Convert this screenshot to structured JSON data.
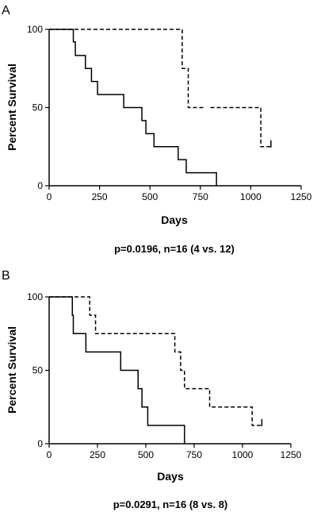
{
  "chart_data": [
    {
      "panel": "A",
      "type": "line",
      "subtype": "kaplan-meier step",
      "xlabel": "Days",
      "ylabel": "Percent Survival",
      "caption": "p=0.0196, n=16 (4 vs. 12)",
      "xlim": [
        0,
        1250
      ],
      "ylim": [
        0,
        100
      ],
      "xticks": [
        0,
        250,
        500,
        750,
        1000,
        1250
      ],
      "yticks": [
        0,
        50,
        100
      ],
      "grid": false,
      "legend": "none",
      "series": [
        {
          "style": "dashed",
          "color": "#000000",
          "points": [
            [
              0,
              100
            ],
            [
              660,
              100
            ],
            [
              660,
              75
            ],
            [
              690,
              75
            ],
            [
              690,
              50
            ],
            [
              770,
              50
            ],
            [
              800,
              50
            ],
            [
              1050,
              50
            ],
            [
              1050,
              25
            ],
            [
              1100,
              25
            ]
          ],
          "gap_between_x": [
            770,
            800
          ],
          "censor_end_tick": true
        },
        {
          "style": "solid",
          "color": "#000000",
          "points": [
            [
              0,
              100
            ],
            [
              120,
              100
            ],
            [
              120,
              92
            ],
            [
              130,
              92
            ],
            [
              130,
              83.3
            ],
            [
              180,
              83.3
            ],
            [
              180,
              75
            ],
            [
              210,
              75
            ],
            [
              210,
              66.7
            ],
            [
              240,
              66.7
            ],
            [
              240,
              58.3
            ],
            [
              370,
              58.3
            ],
            [
              370,
              50
            ],
            [
              460,
              50
            ],
            [
              460,
              41.7
            ],
            [
              480,
              41.7
            ],
            [
              480,
              33.3
            ],
            [
              520,
              33.3
            ],
            [
              520,
              25
            ],
            [
              640,
              25
            ],
            [
              640,
              16.7
            ],
            [
              680,
              16.7
            ],
            [
              680,
              8.3
            ],
            [
              830,
              8.3
            ],
            [
              830,
              0
            ]
          ]
        }
      ]
    },
    {
      "panel": "B",
      "type": "line",
      "subtype": "kaplan-meier step",
      "xlabel": "Days",
      "ylabel": "Percent Survival",
      "caption": "p=0.0291, n=16 (8 vs. 8)",
      "xlim": [
        0,
        1250
      ],
      "ylim": [
        0,
        100
      ],
      "xticks": [
        0,
        250,
        500,
        750,
        1000,
        1250
      ],
      "yticks": [
        0,
        50,
        100
      ],
      "grid": false,
      "legend": "none",
      "series": [
        {
          "style": "dashed",
          "color": "#000000",
          "points": [
            [
              0,
              100
            ],
            [
              210,
              100
            ],
            [
              210,
              87.5
            ],
            [
              240,
              87.5
            ],
            [
              240,
              75
            ],
            [
              650,
              75
            ],
            [
              650,
              62.5
            ],
            [
              680,
              62.5
            ],
            [
              680,
              50
            ],
            [
              700,
              50
            ],
            [
              700,
              37.5
            ],
            [
              830,
              37.5
            ],
            [
              830,
              25
            ],
            [
              1050,
              25
            ],
            [
              1050,
              12.5
            ],
            [
              1100,
              12.5
            ]
          ],
          "censor_end_tick": true
        },
        {
          "style": "solid",
          "color": "#000000",
          "points": [
            [
              0,
              100
            ],
            [
              120,
              100
            ],
            [
              120,
              87.5
            ],
            [
              125,
              87.5
            ],
            [
              125,
              75
            ],
            [
              190,
              75
            ],
            [
              190,
              62.5
            ],
            [
              370,
              62.5
            ],
            [
              370,
              50
            ],
            [
              460,
              50
            ],
            [
              460,
              37.5
            ],
            [
              480,
              37.5
            ],
            [
              480,
              25
            ],
            [
              510,
              25
            ],
            [
              510,
              12.5
            ],
            [
              700,
              12.5
            ],
            [
              700,
              0
            ]
          ]
        }
      ]
    }
  ]
}
